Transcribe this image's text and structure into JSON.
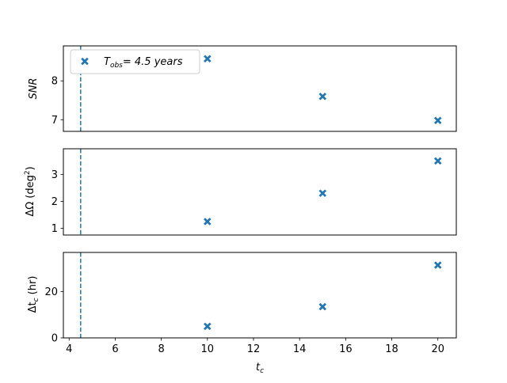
{
  "chart_data": {
    "type": "scatter",
    "xlabel": "t",
    "xlabel_sub": "c",
    "xlim": [
      3.75,
      20.8
    ],
    "xticks": [
      4,
      6,
      8,
      10,
      12,
      14,
      16,
      18,
      20
    ],
    "xtick_labels": [
      "4",
      "6",
      "8",
      "10",
      "12",
      "14",
      "16",
      "18",
      "20"
    ],
    "vline": {
      "x": 4.5,
      "style": "dashed"
    },
    "marker": "x-filled",
    "color": "#1f77b4",
    "legend": {
      "location": "upper-left",
      "label_main": "T",
      "label_sub": "obs",
      "label_rest": "=  4.5 years"
    },
    "panels": [
      {
        "ylabel": "SNR",
        "ylim": [
          6.7,
          8.9
        ],
        "yticks": [
          7,
          8
        ],
        "ytick_labels": [
          "7",
          "8"
        ],
        "x": [
          10,
          15,
          20
        ],
        "y": [
          8.57,
          7.6,
          6.98
        ]
      },
      {
        "ylabel_main": "ΔΩ (deg",
        "ylabel_sup": "2",
        "ylabel_end": ")",
        "ylim": [
          0.75,
          3.95
        ],
        "yticks": [
          1,
          2,
          3
        ],
        "ytick_labels": [
          "1",
          "2",
          "3"
        ],
        "x": [
          10,
          15,
          20
        ],
        "y": [
          1.25,
          2.3,
          3.5
        ]
      },
      {
        "ylabel_main": "Δt",
        "ylabel_sub": "c",
        "ylabel_end": " (hr)",
        "ylim": [
          0,
          37
        ],
        "yticks": [
          0,
          20
        ],
        "ytick_labels": [
          "0",
          "20"
        ],
        "x": [
          10,
          15,
          20
        ],
        "y": [
          5,
          13.5,
          31.5
        ]
      }
    ]
  }
}
